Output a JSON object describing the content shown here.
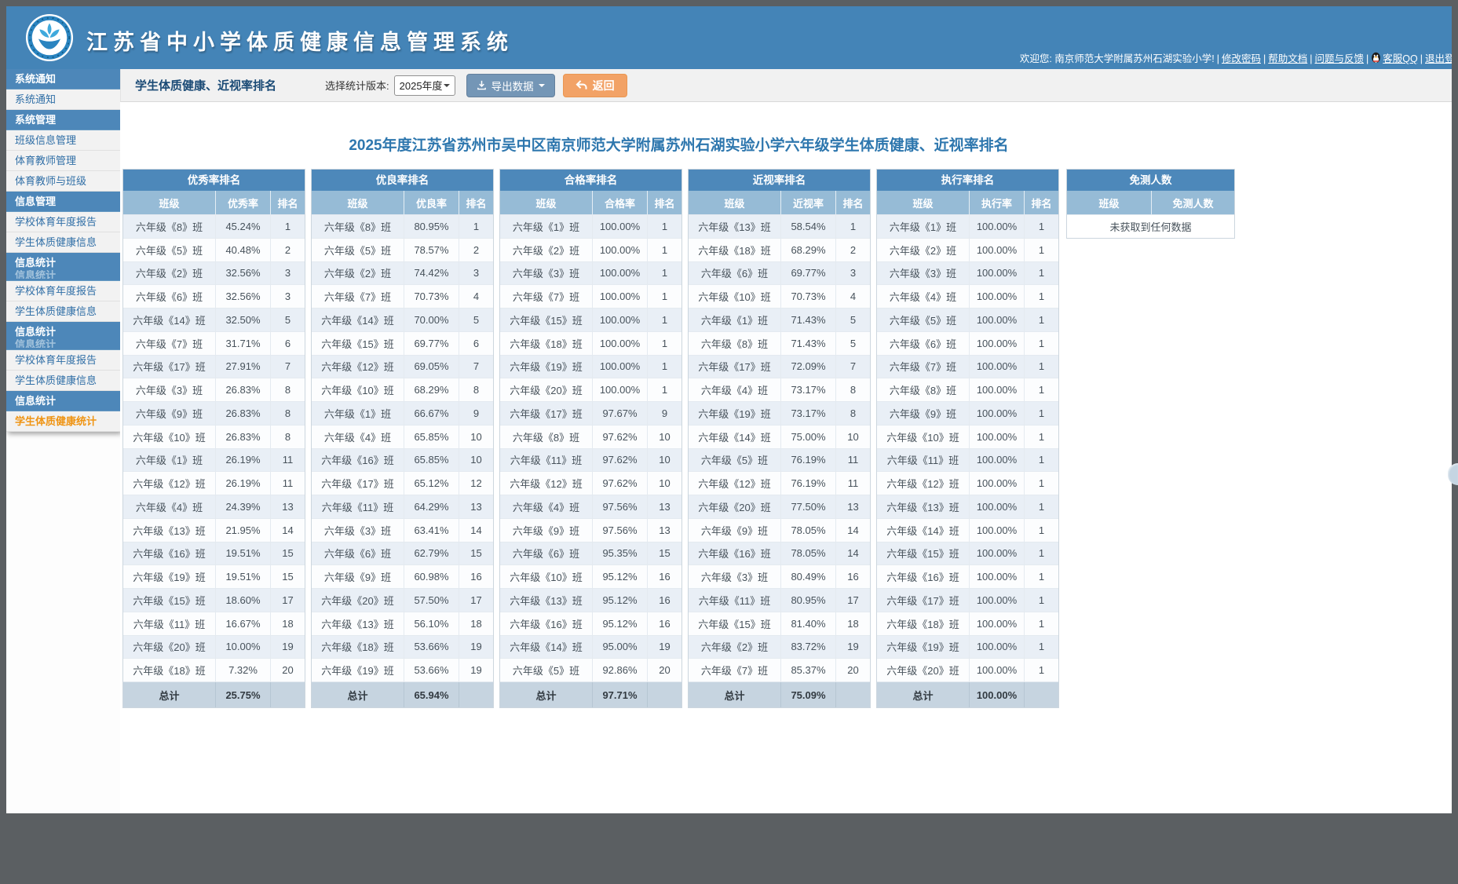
{
  "app": {
    "title": "江苏省中小学体质健康信息管理系统"
  },
  "header": {
    "welcome": "欢迎您: 南京师范大学附属苏州石湖实验小学!",
    "links": [
      {
        "label": "修改密码"
      },
      {
        "label": "帮助文档"
      },
      {
        "label": "问题与反馈"
      },
      {
        "label": "客服QQ",
        "icon": "qq-penguin"
      },
      {
        "label": "退出登录"
      }
    ]
  },
  "sidebar": {
    "items": [
      {
        "type": "group",
        "label": "系统通知"
      },
      {
        "type": "item",
        "label": "系统通知"
      },
      {
        "type": "group",
        "label": "系统管理"
      },
      {
        "type": "item",
        "label": "班级信息管理"
      },
      {
        "type": "item",
        "label": "体育教师管理"
      },
      {
        "type": "item",
        "label": "体育教师与班级"
      },
      {
        "type": "group",
        "label": "信息管理"
      },
      {
        "type": "item",
        "label": "学校体育年度报告"
      },
      {
        "type": "item",
        "label": "学生体质健康信息"
      },
      {
        "type": "group",
        "label": "信息统计",
        "glitch": true
      },
      {
        "type": "item",
        "label": "学校体育年度报告"
      },
      {
        "type": "item",
        "label": "学生体质健康信息"
      },
      {
        "type": "group",
        "label": "信息统计",
        "glitch": true
      },
      {
        "type": "item",
        "label": "学校体育年度报告"
      },
      {
        "type": "item",
        "label": "学生体质健康信息"
      },
      {
        "type": "group",
        "label": "信息统计"
      },
      {
        "type": "item",
        "label": "学生体质健康统计",
        "active": true
      }
    ]
  },
  "toolbar": {
    "page_title": "学生体质健康、近视率排名",
    "version_label": "选择统计版本:",
    "version_value": "2025年度",
    "export_label": "导出数据",
    "back_label": "返回"
  },
  "main": {
    "report_title": "2025年度江苏省苏州市吴中区南京师范大学附属苏州石湖实验小学六年级学生体质健康、近视率排名",
    "total_label": "总计",
    "empty_text": "未获取到任何数据",
    "colors": {
      "accent_blue": "#4484b7",
      "header_cell": "#96bbd6",
      "active_orange": "#ef9413",
      "total_row": "#c6d4e0"
    },
    "tables": [
      {
        "title": "优秀率排名",
        "columns": [
          "班级",
          "优秀率",
          "排名"
        ],
        "rows": [
          [
            "六年级《8》班",
            "45.24%",
            "1"
          ],
          [
            "六年级《5》班",
            "40.48%",
            "2"
          ],
          [
            "六年级《2》班",
            "32.56%",
            "3"
          ],
          [
            "六年级《6》班",
            "32.56%",
            "3"
          ],
          [
            "六年级《14》班",
            "32.50%",
            "5"
          ],
          [
            "六年级《7》班",
            "31.71%",
            "6"
          ],
          [
            "六年级《17》班",
            "27.91%",
            "7"
          ],
          [
            "六年级《3》班",
            "26.83%",
            "8"
          ],
          [
            "六年级《9》班",
            "26.83%",
            "8"
          ],
          [
            "六年级《10》班",
            "26.83%",
            "8"
          ],
          [
            "六年级《1》班",
            "26.19%",
            "11"
          ],
          [
            "六年级《12》班",
            "26.19%",
            "11"
          ],
          [
            "六年级《4》班",
            "24.39%",
            "13"
          ],
          [
            "六年级《13》班",
            "21.95%",
            "14"
          ],
          [
            "六年级《16》班",
            "19.51%",
            "15"
          ],
          [
            "六年级《19》班",
            "19.51%",
            "15"
          ],
          [
            "六年级《15》班",
            "18.60%",
            "17"
          ],
          [
            "六年级《11》班",
            "16.67%",
            "18"
          ],
          [
            "六年级《20》班",
            "10.00%",
            "19"
          ],
          [
            "六年级《18》班",
            "7.32%",
            "20"
          ]
        ],
        "total": "25.75%"
      },
      {
        "title": "优良率排名",
        "columns": [
          "班级",
          "优良率",
          "排名"
        ],
        "rows": [
          [
            "六年级《8》班",
            "80.95%",
            "1"
          ],
          [
            "六年级《5》班",
            "78.57%",
            "2"
          ],
          [
            "六年级《2》班",
            "74.42%",
            "3"
          ],
          [
            "六年级《7》班",
            "70.73%",
            "4"
          ],
          [
            "六年级《14》班",
            "70.00%",
            "5"
          ],
          [
            "六年级《15》班",
            "69.77%",
            "6"
          ],
          [
            "六年级《12》班",
            "69.05%",
            "7"
          ],
          [
            "六年级《10》班",
            "68.29%",
            "8"
          ],
          [
            "六年级《1》班",
            "66.67%",
            "9"
          ],
          [
            "六年级《4》班",
            "65.85%",
            "10"
          ],
          [
            "六年级《16》班",
            "65.85%",
            "10"
          ],
          [
            "六年级《17》班",
            "65.12%",
            "12"
          ],
          [
            "六年级《11》班",
            "64.29%",
            "13"
          ],
          [
            "六年级《3》班",
            "63.41%",
            "14"
          ],
          [
            "六年级《6》班",
            "62.79%",
            "15"
          ],
          [
            "六年级《9》班",
            "60.98%",
            "16"
          ],
          [
            "六年级《20》班",
            "57.50%",
            "17"
          ],
          [
            "六年级《13》班",
            "56.10%",
            "18"
          ],
          [
            "六年级《18》班",
            "53.66%",
            "19"
          ],
          [
            "六年级《19》班",
            "53.66%",
            "19"
          ]
        ],
        "total": "65.94%"
      },
      {
        "title": "合格率排名",
        "columns": [
          "班级",
          "合格率",
          "排名"
        ],
        "rows": [
          [
            "六年级《1》班",
            "100.00%",
            "1"
          ],
          [
            "六年级《2》班",
            "100.00%",
            "1"
          ],
          [
            "六年级《3》班",
            "100.00%",
            "1"
          ],
          [
            "六年级《7》班",
            "100.00%",
            "1"
          ],
          [
            "六年级《15》班",
            "100.00%",
            "1"
          ],
          [
            "六年级《18》班",
            "100.00%",
            "1"
          ],
          [
            "六年级《19》班",
            "100.00%",
            "1"
          ],
          [
            "六年级《20》班",
            "100.00%",
            "1"
          ],
          [
            "六年级《17》班",
            "97.67%",
            "9"
          ],
          [
            "六年级《8》班",
            "97.62%",
            "10"
          ],
          [
            "六年级《11》班",
            "97.62%",
            "10"
          ],
          [
            "六年级《12》班",
            "97.62%",
            "10"
          ],
          [
            "六年级《4》班",
            "97.56%",
            "13"
          ],
          [
            "六年级《9》班",
            "97.56%",
            "13"
          ],
          [
            "六年级《6》班",
            "95.35%",
            "15"
          ],
          [
            "六年级《10》班",
            "95.12%",
            "16"
          ],
          [
            "六年级《13》班",
            "95.12%",
            "16"
          ],
          [
            "六年级《16》班",
            "95.12%",
            "16"
          ],
          [
            "六年级《14》班",
            "95.00%",
            "19"
          ],
          [
            "六年级《5》班",
            "92.86%",
            "20"
          ]
        ],
        "total": "97.71%"
      },
      {
        "title": "近视率排名",
        "columns": [
          "班级",
          "近视率",
          "排名"
        ],
        "rows": [
          [
            "六年级《13》班",
            "58.54%",
            "1"
          ],
          [
            "六年级《18》班",
            "68.29%",
            "2"
          ],
          [
            "六年级《6》班",
            "69.77%",
            "3"
          ],
          [
            "六年级《10》班",
            "70.73%",
            "4"
          ],
          [
            "六年级《1》班",
            "71.43%",
            "5"
          ],
          [
            "六年级《8》班",
            "71.43%",
            "5"
          ],
          [
            "六年级《17》班",
            "72.09%",
            "7"
          ],
          [
            "六年级《4》班",
            "73.17%",
            "8"
          ],
          [
            "六年级《19》班",
            "73.17%",
            "8"
          ],
          [
            "六年级《14》班",
            "75.00%",
            "10"
          ],
          [
            "六年级《5》班",
            "76.19%",
            "11"
          ],
          [
            "六年级《12》班",
            "76.19%",
            "11"
          ],
          [
            "六年级《20》班",
            "77.50%",
            "13"
          ],
          [
            "六年级《9》班",
            "78.05%",
            "14"
          ],
          [
            "六年级《16》班",
            "78.05%",
            "14"
          ],
          [
            "六年级《3》班",
            "80.49%",
            "16"
          ],
          [
            "六年级《11》班",
            "80.95%",
            "17"
          ],
          [
            "六年级《15》班",
            "81.40%",
            "18"
          ],
          [
            "六年级《2》班",
            "83.72%",
            "19"
          ],
          [
            "六年级《7》班",
            "85.37%",
            "20"
          ]
        ],
        "total": "75.09%"
      },
      {
        "title": "执行率排名",
        "columns": [
          "班级",
          "执行率",
          "排名"
        ],
        "rows": [
          [
            "六年级《1》班",
            "100.00%",
            "1"
          ],
          [
            "六年级《2》班",
            "100.00%",
            "1"
          ],
          [
            "六年级《3》班",
            "100.00%",
            "1"
          ],
          [
            "六年级《4》班",
            "100.00%",
            "1"
          ],
          [
            "六年级《5》班",
            "100.00%",
            "1"
          ],
          [
            "六年级《6》班",
            "100.00%",
            "1"
          ],
          [
            "六年级《7》班",
            "100.00%",
            "1"
          ],
          [
            "六年级《8》班",
            "100.00%",
            "1"
          ],
          [
            "六年级《9》班",
            "100.00%",
            "1"
          ],
          [
            "六年级《10》班",
            "100.00%",
            "1"
          ],
          [
            "六年级《11》班",
            "100.00%",
            "1"
          ],
          [
            "六年级《12》班",
            "100.00%",
            "1"
          ],
          [
            "六年级《13》班",
            "100.00%",
            "1"
          ],
          [
            "六年级《14》班",
            "100.00%",
            "1"
          ],
          [
            "六年级《15》班",
            "100.00%",
            "1"
          ],
          [
            "六年级《16》班",
            "100.00%",
            "1"
          ],
          [
            "六年级《17》班",
            "100.00%",
            "1"
          ],
          [
            "六年级《18》班",
            "100.00%",
            "1"
          ],
          [
            "六年级《19》班",
            "100.00%",
            "1"
          ],
          [
            "六年级《20》班",
            "100.00%",
            "1"
          ]
        ],
        "total": "100.00%"
      },
      {
        "title": "免测人数",
        "columns": [
          "班级",
          "免测人数"
        ],
        "rows": [],
        "empty": true
      }
    ]
  }
}
